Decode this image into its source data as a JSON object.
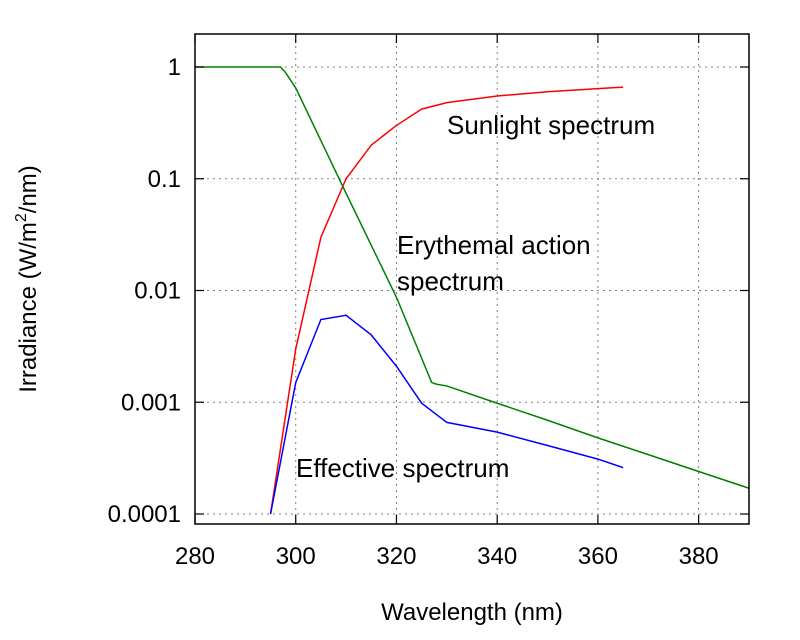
{
  "chart_data": {
    "type": "line",
    "xlabel": "Wavelength (nm)",
    "ylabel_parts": {
      "before": "Irradiance (W/m",
      "superscript": "2",
      "after": "/nm)"
    },
    "xlim": [
      280,
      390
    ],
    "ylim": [
      0.0001,
      2
    ],
    "y_scale": "log",
    "grid": true,
    "x_ticks": [
      {
        "value": 280,
        "label": "280"
      },
      {
        "value": 300,
        "label": "300"
      },
      {
        "value": 320,
        "label": "320"
      },
      {
        "value": 340,
        "label": "340"
      },
      {
        "value": 360,
        "label": "360"
      },
      {
        "value": 380,
        "label": "380"
      }
    ],
    "y_ticks": [
      {
        "value": 1,
        "label": "1"
      },
      {
        "value": 0.1,
        "label": "0.1"
      },
      {
        "value": 0.01,
        "label": "0.01"
      },
      {
        "value": 0.001,
        "label": "0.001"
      },
      {
        "value": 0.0001,
        "label": "0.0001"
      }
    ],
    "series": [
      {
        "key": "sunlight",
        "color": "#ff0000",
        "x": [
          295,
          300,
          305,
          310,
          315,
          320,
          325,
          330,
          340,
          350,
          360,
          365
        ],
        "y": [
          0.0001,
          0.003,
          0.03,
          0.1,
          0.2,
          0.3,
          0.42,
          0.48,
          0.55,
          0.6,
          0.64,
          0.66
        ]
      },
      {
        "key": "erythemal",
        "color": "#008000",
        "x": [
          280,
          297,
          298,
          300,
          310,
          320,
          327,
          328,
          330,
          340,
          350,
          360,
          370,
          380,
          390
        ],
        "y": [
          1,
          1,
          0.89,
          0.65,
          0.074,
          0.0087,
          0.0015,
          0.00145,
          0.0014,
          0.00098,
          0.00069,
          0.00048,
          0.00034,
          0.00024,
          0.00017
        ]
      },
      {
        "key": "effective",
        "color": "#0000ff",
        "x": [
          295,
          300,
          305,
          310,
          315,
          320,
          325,
          330,
          340,
          350,
          360,
          365
        ],
        "y": [
          0.0001,
          0.0015,
          0.0055,
          0.006,
          0.004,
          0.0021,
          0.00098,
          0.00066,
          0.00054,
          0.00041,
          0.00031,
          0.00026
        ]
      }
    ],
    "annotations": [
      {
        "key": "sunlight",
        "text": "Sunlight spectrum"
      },
      {
        "key": "erythemal",
        "lines": [
          "Erythemal action",
          "spectrum"
        ]
      },
      {
        "key": "effective",
        "text": "Effective spectrum"
      }
    ]
  }
}
